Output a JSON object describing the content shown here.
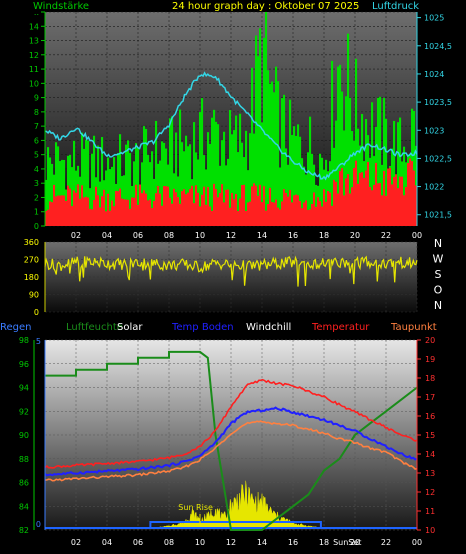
{
  "title": "24 hour graph day : Oktober 07 2025",
  "colors": {
    "green": "#00e000",
    "cyan": "#33d6e6",
    "yellow": "#e6e600",
    "red": "#ff2020",
    "orange": "#ff8040",
    "blue": "#2020ff",
    "white": "#ffffff",
    "axis_left": "#00c800",
    "axis_right_top": "#33d6e6",
    "axis_right_bottom": "#ff3030",
    "regen": "#3a7cff",
    "solar": "#e6e600",
    "luftfeuchte": "#1a8c1a"
  },
  "chart_data": [
    {
      "type": "area",
      "panel": "wind-pressure",
      "title": "24 hour graph day : Oktober 07 2025",
      "left_axis_label": "Windstärke",
      "right_axis_label": "Luftdruck",
      "x_ticks": [
        "02",
        "04",
        "06",
        "08",
        "10",
        "12",
        "14",
        "16",
        "18",
        "20",
        "22",
        "00"
      ],
      "x_range_hours": [
        0,
        24
      ],
      "ylim_left": [
        0,
        15
      ],
      "y_ticks_left": [
        "0",
        "1",
        "2",
        "3",
        "4",
        "5",
        "6",
        "7",
        "8",
        "9",
        "10",
        "11",
        "12",
        "13",
        "14",
        ".."
      ],
      "ylim_right": [
        1021.3,
        1025.1
      ],
      "y_ticks_right": [
        "1021,5",
        "1022",
        "1022,5",
        "1023",
        "1023,5",
        "1024",
        "1024,5",
        "1025"
      ],
      "series": [
        {
          "name": "Luftdruck",
          "x": [
            0,
            1,
            2,
            3,
            4,
            5,
            6,
            7,
            8,
            9,
            10,
            11,
            12,
            13,
            14,
            15,
            16,
            17,
            18,
            19,
            20,
            21,
            22,
            23,
            24
          ],
          "y": [
            1023.0,
            1022.85,
            1023.05,
            1022.8,
            1022.55,
            1022.6,
            1022.7,
            1022.8,
            1023.1,
            1023.6,
            1024.0,
            1023.95,
            1023.6,
            1023.3,
            1023.0,
            1022.7,
            1022.45,
            1022.25,
            1022.15,
            1022.35,
            1022.6,
            1022.75,
            1022.65,
            1022.55,
            1022.6
          ]
        },
        {
          "name": "Windstärke gust",
          "x": [
            0,
            1,
            2,
            3,
            4,
            5,
            6,
            7,
            8,
            9,
            10,
            11,
            12,
            13,
            14,
            15,
            16,
            17,
            18,
            19,
            20,
            21,
            22,
            23,
            24
          ],
          "y": [
            5.5,
            5.5,
            5.5,
            5.5,
            5.5,
            5.5,
            5.5,
            6.5,
            6.5,
            7,
            7.5,
            8,
            7,
            7.5,
            14.5,
            9,
            7,
            7,
            5.5,
            14,
            10,
            8.5,
            7.5,
            6.5,
            9
          ]
        },
        {
          "name": "Windstärke avg",
          "x": [
            0,
            1,
            2,
            3,
            4,
            5,
            6,
            7,
            8,
            9,
            10,
            11,
            12,
            13,
            14,
            15,
            16,
            17,
            18,
            19,
            20,
            21,
            22,
            23,
            24
          ],
          "y": [
            2.5,
            2.5,
            2.5,
            2.5,
            2.5,
            2.5,
            2.5,
            2.5,
            2.5,
            2.5,
            2.5,
            2.5,
            2.5,
            2.5,
            2.5,
            2.5,
            2.5,
            2.5,
            2.5,
            4,
            4,
            4,
            4,
            4,
            4
          ]
        }
      ]
    },
    {
      "type": "line",
      "panel": "wind-direction",
      "x_ticks": [
        "02",
        "04",
        "06",
        "08",
        "10",
        "12",
        "14",
        "16",
        "18",
        "20",
        "22",
        "00"
      ],
      "ylim": [
        0,
        360
      ],
      "y_ticks": [
        "0",
        "90",
        "180",
        "270",
        "360"
      ],
      "right_labels": [
        "N",
        "W",
        "S",
        "O",
        "N"
      ],
      "series": [
        {
          "name": "Windrichtung",
          "x": [
            0,
            1,
            2,
            3,
            4,
            5,
            6,
            7,
            8,
            9,
            10,
            11,
            12,
            13,
            14,
            15,
            16,
            17,
            18,
            19,
            20,
            21,
            22,
            23,
            24
          ],
          "y": [
            250,
            240,
            255,
            260,
            250,
            245,
            255,
            250,
            240,
            245,
            230,
            250,
            245,
            235,
            240,
            250,
            255,
            245,
            250,
            255,
            260,
            255,
            250,
            255,
            250
          ]
        }
      ]
    },
    {
      "type": "line",
      "panel": "climate",
      "legend": [
        "Regen",
        "Luftfeuchte",
        "Solar",
        "Temp Boden",
        "Windchill",
        "Temperatur",
        "Taupunkt"
      ],
      "x_ticks": [
        "02",
        "04",
        "06",
        "08",
        "10",
        "12",
        "14",
        "16",
        "18",
        "20",
        "22",
        "00"
      ],
      "ylim_left": [
        82,
        98
      ],
      "y_ticks_left": [
        "82",
        "84",
        "86",
        "88",
        "90",
        "92",
        "94",
        "96",
        "98"
      ],
      "ylim_right": [
        10,
        20
      ],
      "y_ticks_right": [
        "10",
        "11",
        "12",
        "13",
        "14",
        "15",
        "16",
        "17",
        "18",
        "19",
        "20"
      ],
      "regen_axis_ticks": [
        "0",
        "5"
      ],
      "annotations": [
        "Sun Rise",
        "SunSet"
      ],
      "series": [
        {
          "name": "Luftfeuchte",
          "x": [
            0,
            2,
            2,
            4,
            4,
            6,
            6,
            8,
            8,
            10,
            10.5,
            11,
            12,
            13,
            14,
            15,
            16,
            17,
            18,
            19,
            20,
            21,
            22,
            23,
            24
          ],
          "y": [
            95,
            95,
            95.5,
            95.5,
            96,
            96,
            96.5,
            96.5,
            97,
            97,
            96.5,
            90,
            82,
            82,
            82,
            83,
            84,
            85,
            87,
            88,
            90,
            91,
            92,
            93,
            94
          ]
        },
        {
          "name": "Temperatur",
          "x": [
            0,
            2,
            4,
            6,
            8,
            9,
            10,
            11,
            12,
            13,
            14,
            15,
            16,
            17,
            18,
            19,
            20,
            21,
            22,
            23,
            24
          ],
          "y": [
            13.3,
            13.4,
            13.5,
            13.6,
            13.8,
            14.0,
            14.4,
            15.2,
            16.5,
            17.6,
            17.9,
            17.7,
            17.6,
            17.3,
            17.0,
            16.6,
            16.2,
            15.8,
            15.4,
            15.0,
            14.7
          ]
        },
        {
          "name": "Temp Boden",
          "x": [
            0,
            2,
            4,
            6,
            8,
            9,
            10,
            11,
            12,
            13,
            14,
            15,
            16,
            17,
            18,
            19,
            20,
            21,
            22,
            23,
            24
          ],
          "y": [
            12.9,
            13.0,
            13.1,
            13.2,
            13.4,
            13.6,
            13.9,
            14.6,
            15.6,
            16.2,
            16.3,
            16.4,
            16.2,
            16.0,
            15.8,
            15.5,
            15.2,
            14.8,
            14.4,
            14.0,
            13.7
          ]
        },
        {
          "name": "Taupunkt",
          "x": [
            0,
            2,
            4,
            6,
            8,
            9,
            10,
            11,
            12,
            13,
            14,
            15,
            16,
            17,
            18,
            19,
            20,
            21,
            22,
            23,
            24
          ],
          "y": [
            12.6,
            12.7,
            12.8,
            12.9,
            13.1,
            13.3,
            13.7,
            14.3,
            15.1,
            15.6,
            15.7,
            15.6,
            15.5,
            15.3,
            15.1,
            14.8,
            14.6,
            14.3,
            14.1,
            13.6,
            13.2
          ]
        },
        {
          "name": "Solar",
          "x": [
            7,
            8,
            9,
            9.5,
            10,
            10.5,
            11,
            11.5,
            12,
            12.5,
            13,
            13.5,
            14,
            14.5,
            15,
            16,
            17,
            18
          ],
          "y": [
            0,
            0.2,
            0.6,
            1.6,
            0.8,
            1.2,
            2.0,
            1.0,
            2.4,
            3.0,
            3.6,
            2.6,
            2.8,
            1.8,
            1.2,
            0.5,
            0.2,
            0
          ]
        },
        {
          "name": "Regen",
          "x": [
            0,
            6.8,
            6.8,
            17.8,
            17.8,
            24
          ],
          "y": [
            0,
            0,
            0.3,
            0.3,
            0,
            0
          ]
        }
      ]
    }
  ]
}
